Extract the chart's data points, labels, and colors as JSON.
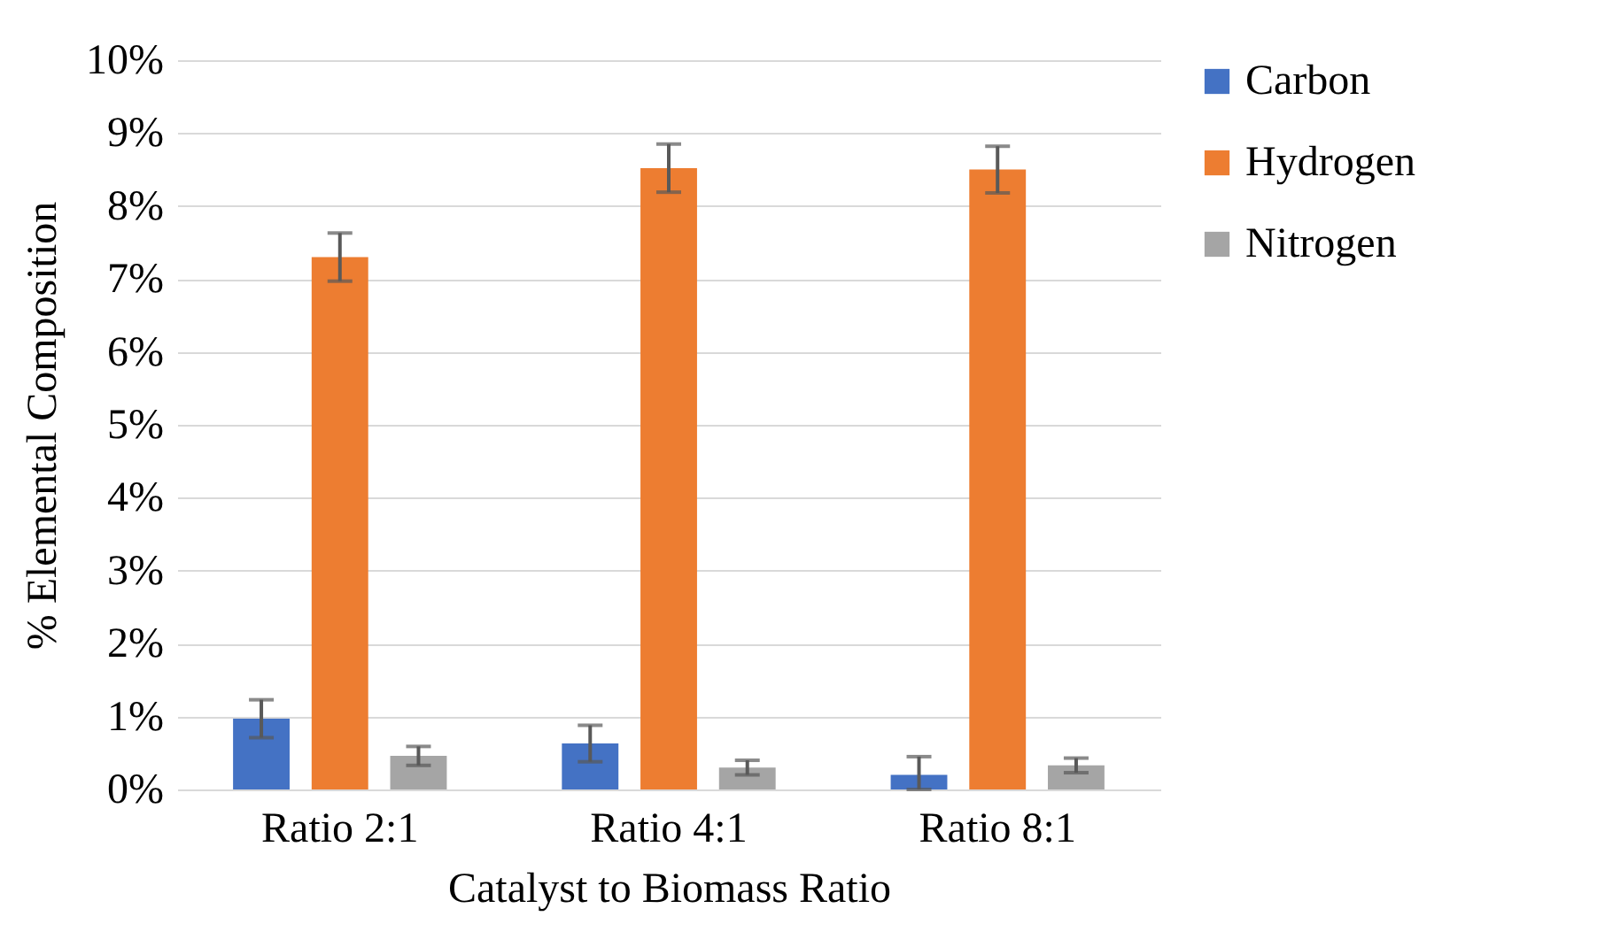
{
  "chart_data": {
    "type": "bar",
    "xlabel": "Catalyst to Biomass Ratio",
    "ylabel": "% Elemental Composition",
    "categories": [
      "Ratio 2:1",
      "Ratio 4:1",
      "Ratio 8:1"
    ],
    "series": [
      {
        "name": "Carbon",
        "color": "#4472c4",
        "values": [
          0.97,
          0.63,
          0.2
        ],
        "errors": [
          0.26,
          0.25,
          [
            0,
            0.45
          ]
        ]
      },
      {
        "name": "Hydrogen",
        "color": "#ed7d31",
        "values": [
          7.3,
          8.52,
          8.5
        ],
        "errors": [
          0.33,
          0.33,
          0.32
        ]
      },
      {
        "name": "Nitrogen",
        "color": "#a5a5a5",
        "values": [
          0.46,
          0.3,
          0.33
        ],
        "errors": [
          0.13,
          0.1,
          0.1
        ]
      }
    ],
    "ylim": [
      0,
      10
    ],
    "yticks": [
      {
        "value": 0,
        "label": "0%"
      },
      {
        "value": 1,
        "label": "1%"
      },
      {
        "value": 2,
        "label": "2%"
      },
      {
        "value": 3,
        "label": "3%"
      },
      {
        "value": 4,
        "label": "4%"
      },
      {
        "value": 5,
        "label": "5%"
      },
      {
        "value": 6,
        "label": "6%"
      },
      {
        "value": 7,
        "label": "7%"
      },
      {
        "value": 8,
        "label": "8%"
      },
      {
        "value": 9,
        "label": "9%"
      },
      {
        "value": 10,
        "label": "10%"
      }
    ],
    "grid": "y",
    "legend": "right"
  }
}
